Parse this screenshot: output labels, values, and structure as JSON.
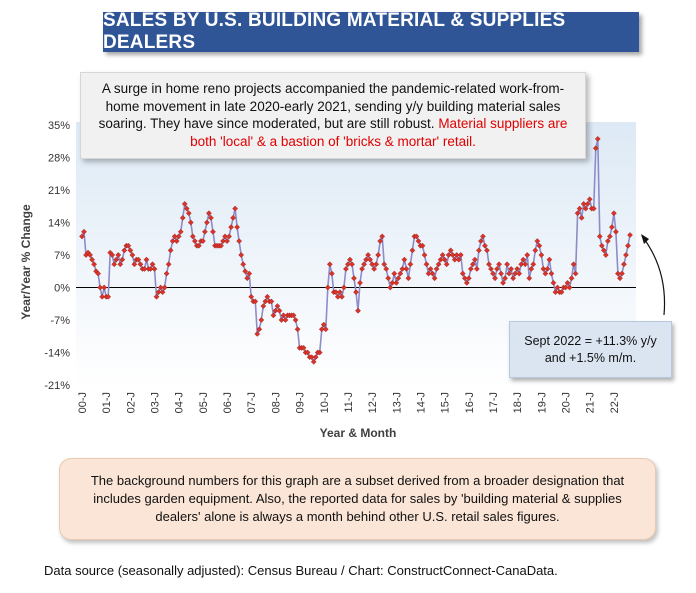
{
  "title": "SALES BY U.S. BUILDING MATERIAL & SUPPLIES DEALERS",
  "top_callout": {
    "text": "A surge in home reno projects accompanied the pandemic-related work-from-home movement in late 2020-early 2021, sending y/y building material sales soaring. They have since moderated, but are still robust.",
    "highlight": "Material suppliers are both 'local' & a bastion of 'bricks & mortar' retail."
  },
  "annotation": {
    "line1": "Sept 2022 = +11.3% y/y",
    "line2": "and +1.5% m/m."
  },
  "bottom_note": "The background numbers for this graph are a subset derived from a broader designation that includes garden equipment. Also, the reported data for sales by 'building material & supplies dealers' alone is always a month behind other U.S. retail sales figures.",
  "source": "Data source (seasonally adjusted): Census Bureau / Chart: ConstructConnect-CanaData.",
  "colors": {
    "title_bg": "#2f5597",
    "line": "#8e8cc8",
    "marker": "#d9342b",
    "plot_bg_top": "#dde9f5",
    "highlight": "#e00000"
  },
  "chart_data": {
    "type": "line",
    "title": "SALES BY U.S. BUILDING MATERIAL & SUPPLIES DEALERS",
    "xlabel": "Year & Month",
    "ylabel": "Year/Year % Change",
    "ylim": [
      -21,
      35
    ],
    "yticks": [
      "35%",
      "28%",
      "21%",
      "14%",
      "7%",
      "0%",
      "-7%",
      "-14%",
      "-21%"
    ],
    "ytick_values": [
      35,
      28,
      21,
      14,
      7,
      0,
      -7,
      -14,
      -21
    ],
    "xticks": [
      "00-J",
      "01-J",
      "02-J",
      "03-J",
      "04-J",
      "05-J",
      "06-J",
      "07-J",
      "08-J",
      "09-J",
      "10-J",
      "11-J",
      "12-J",
      "13-J",
      "14-J",
      "15-J",
      "16-J",
      "17-J",
      "18-J",
      "19-J",
      "20-J",
      "21-J",
      "22-J"
    ],
    "grid": false,
    "legend": "none",
    "series": [
      {
        "start": "2000-01",
        "values": [
          11,
          12,
          7,
          7.5,
          7,
          6,
          5,
          3.5,
          3,
          0,
          -2,
          0,
          -2,
          -2,
          7.5,
          7,
          5,
          6,
          7,
          5,
          6,
          8,
          9,
          9,
          8,
          7,
          5,
          6,
          6,
          5,
          4,
          4,
          6,
          4,
          4,
          5,
          4,
          -2,
          -1,
          0,
          -1,
          0,
          3,
          5,
          8,
          10,
          11,
          10,
          11,
          12,
          15,
          18,
          17,
          16,
          14,
          11,
          10,
          9,
          9,
          10,
          10,
          12,
          14,
          16,
          15,
          12,
          9,
          9,
          9,
          9,
          10,
          11,
          10,
          11,
          13,
          15,
          17,
          13,
          10,
          7,
          5,
          3.5,
          2,
          3,
          -2,
          -3,
          -3,
          -10,
          -9,
          -7,
          -4,
          -3,
          -2,
          -3,
          -3,
          -6,
          -5,
          -4,
          -5,
          -7,
          -6,
          -7,
          -6,
          -6,
          -6,
          -6,
          -7,
          -9,
          -13,
          -13,
          -13,
          -14,
          -14,
          -15,
          -15,
          -16,
          -15,
          -14,
          -14,
          -9,
          -8,
          -9,
          0,
          5,
          3,
          -1,
          -1,
          -2,
          -1,
          -2,
          0,
          4,
          5,
          6,
          5,
          2,
          -1,
          -5,
          1,
          4,
          5,
          6,
          7,
          6,
          5,
          4,
          5,
          7,
          10,
          11,
          5,
          4,
          2,
          0,
          1,
          3,
          1,
          2,
          3,
          4,
          6,
          4,
          2,
          5,
          8,
          11,
          11,
          10,
          9,
          9,
          7,
          5,
          3,
          4,
          3,
          2,
          4,
          5,
          6,
          7,
          6,
          5,
          7,
          8,
          7,
          6,
          7,
          6,
          7,
          3,
          2,
          1,
          2,
          4,
          5,
          6,
          4,
          8,
          10,
          11,
          9,
          8,
          5,
          4,
          3,
          2,
          4,
          5,
          3,
          1,
          2,
          5,
          3,
          4,
          2,
          3,
          4,
          3,
          5,
          6,
          5,
          7,
          2,
          4,
          5,
          8,
          10,
          9,
          7,
          4,
          3,
          4,
          6,
          3,
          1,
          -1,
          0,
          -1,
          -1,
          0,
          0,
          1,
          0,
          2,
          5,
          3,
          16,
          17,
          15,
          18,
          17,
          18,
          19,
          17,
          17,
          30,
          32,
          11,
          9,
          8,
          7,
          10,
          11,
          13,
          16,
          12,
          3,
          2,
          3,
          5,
          7,
          9,
          11.3
        ]
      }
    ]
  }
}
